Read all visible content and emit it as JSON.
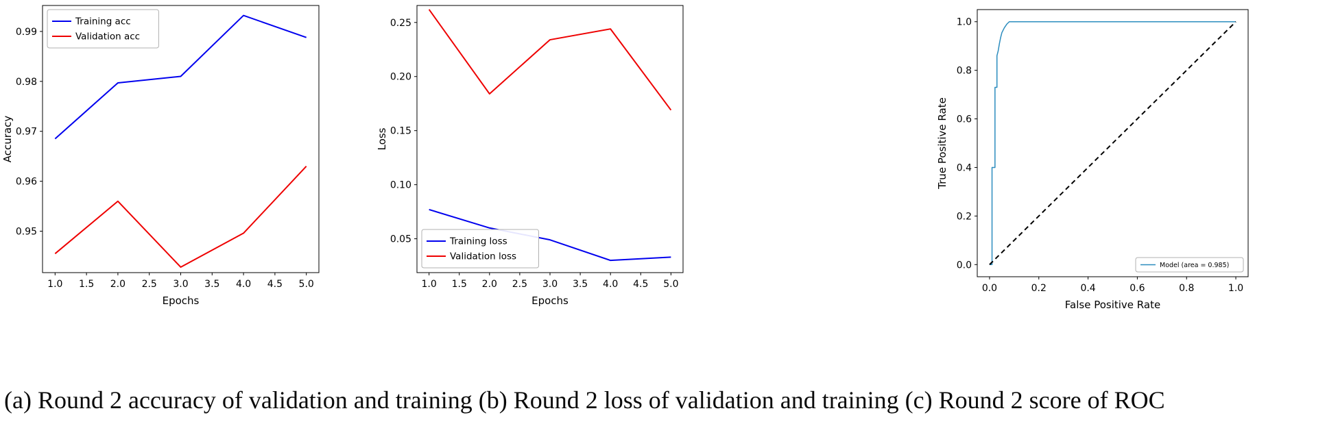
{
  "caption": "(a) Round 2 accuracy of validation and training (b) Round 2 loss of validation and training (c) Round 2 score of ROC",
  "colors": {
    "training_line": "#0000ee",
    "validation_line": "#ee0000",
    "roc_line": "#2b8cbe",
    "chance_line": "#000000"
  },
  "chart_data": [
    {
      "type": "line",
      "name": "round2-accuracy",
      "xlabel": "Epochs",
      "ylabel": "Accuracy",
      "xlim": [
        0.8,
        5.2
      ],
      "ylim": [
        0.9417,
        0.9952
      ],
      "grid": false,
      "xticks": {
        "values": [
          1.0,
          1.5,
          2.0,
          2.5,
          3.0,
          3.5,
          4.0,
          4.5,
          5.0
        ],
        "labels": [
          "1.0",
          "1.5",
          "2.0",
          "2.5",
          "3.0",
          "3.5",
          "4.0",
          "4.5",
          "5.0"
        ]
      },
      "yticks": {
        "values": [
          0.95,
          0.96,
          0.97,
          0.98,
          0.99
        ],
        "labels": [
          "0.95",
          "0.96",
          "0.97",
          "0.98",
          "0.99"
        ]
      },
      "x": [
        1,
        2,
        3,
        4,
        5
      ],
      "series": [
        {
          "name": "Training acc",
          "color": "#0000ee",
          "values": [
            0.9685,
            0.9797,
            0.981,
            0.9932,
            0.9888
          ]
        },
        {
          "name": "Validation acc",
          "color": "#ee0000",
          "values": [
            0.9455,
            0.956,
            0.9428,
            0.9496,
            0.963
          ]
        }
      ],
      "legend": {
        "position": "upper-left"
      }
    },
    {
      "type": "line",
      "name": "round2-loss",
      "xlabel": "Epochs",
      "ylabel": "Loss",
      "xlim": [
        0.8,
        5.2
      ],
      "ylim": [
        0.0187,
        0.2657
      ],
      "grid": false,
      "xticks": {
        "values": [
          1.0,
          1.5,
          2.0,
          2.5,
          3.0,
          3.5,
          4.0,
          4.5,
          5.0
        ],
        "labels": [
          "1.0",
          "1.5",
          "2.0",
          "2.5",
          "3.0",
          "3.5",
          "4.0",
          "4.5",
          "5.0"
        ]
      },
      "yticks": {
        "values": [
          0.05,
          0.1,
          0.15,
          0.2,
          0.25
        ],
        "labels": [
          "0.05",
          "0.10",
          "0.15",
          "0.20",
          "0.25"
        ]
      },
      "x": [
        1,
        2,
        3,
        4,
        5
      ],
      "series": [
        {
          "name": "Training loss",
          "color": "#0000ee",
          "values": [
            0.077,
            0.06,
            0.049,
            0.03,
            0.033
          ]
        },
        {
          "name": "Validation loss",
          "color": "#ee0000",
          "values": [
            0.262,
            0.184,
            0.234,
            0.244,
            0.169
          ]
        }
      ],
      "legend": {
        "position": "lower-left"
      }
    },
    {
      "type": "line",
      "name": "round2-roc",
      "xlabel": "False Positive Rate",
      "ylabel": "True Positive Rate",
      "xlim": [
        -0.05,
        1.05
      ],
      "ylim": [
        -0.05,
        1.05
      ],
      "grid": false,
      "xticks": {
        "values": [
          0.0,
          0.2,
          0.4,
          0.6,
          0.8,
          1.0
        ],
        "labels": [
          "0.0",
          "0.2",
          "0.4",
          "0.6",
          "0.8",
          "1.0"
        ]
      },
      "yticks": {
        "values": [
          0.0,
          0.2,
          0.4,
          0.6,
          0.8,
          1.0
        ],
        "labels": [
          "0.0",
          "0.2",
          "0.4",
          "0.6",
          "0.8",
          "1.0"
        ]
      },
      "series": [
        {
          "name": "Model (area = 0.985)",
          "color": "#2b8cbe",
          "width": 1.5,
          "points": [
            [
              0,
              0
            ],
            [
              0.01,
              0
            ],
            [
              0.01,
              0.4
            ],
            [
              0.022,
              0.4
            ],
            [
              0.022,
              0.73
            ],
            [
              0.03,
              0.73
            ],
            [
              0.03,
              0.86
            ],
            [
              0.035,
              0.88
            ],
            [
              0.04,
              0.91
            ],
            [
              0.045,
              0.935
            ],
            [
              0.05,
              0.955
            ],
            [
              0.06,
              0.975
            ],
            [
              0.07,
              0.99
            ],
            [
              0.08,
              1.0
            ],
            [
              1.0,
              1.0
            ]
          ]
        },
        {
          "name": "chance-diagonal",
          "color": "#000000",
          "width": 2,
          "dash": "7,5",
          "legend": false,
          "points": [
            [
              0,
              0
            ],
            [
              1,
              1
            ]
          ]
        }
      ],
      "legend": {
        "position": "lower-right",
        "small": true
      }
    }
  ]
}
